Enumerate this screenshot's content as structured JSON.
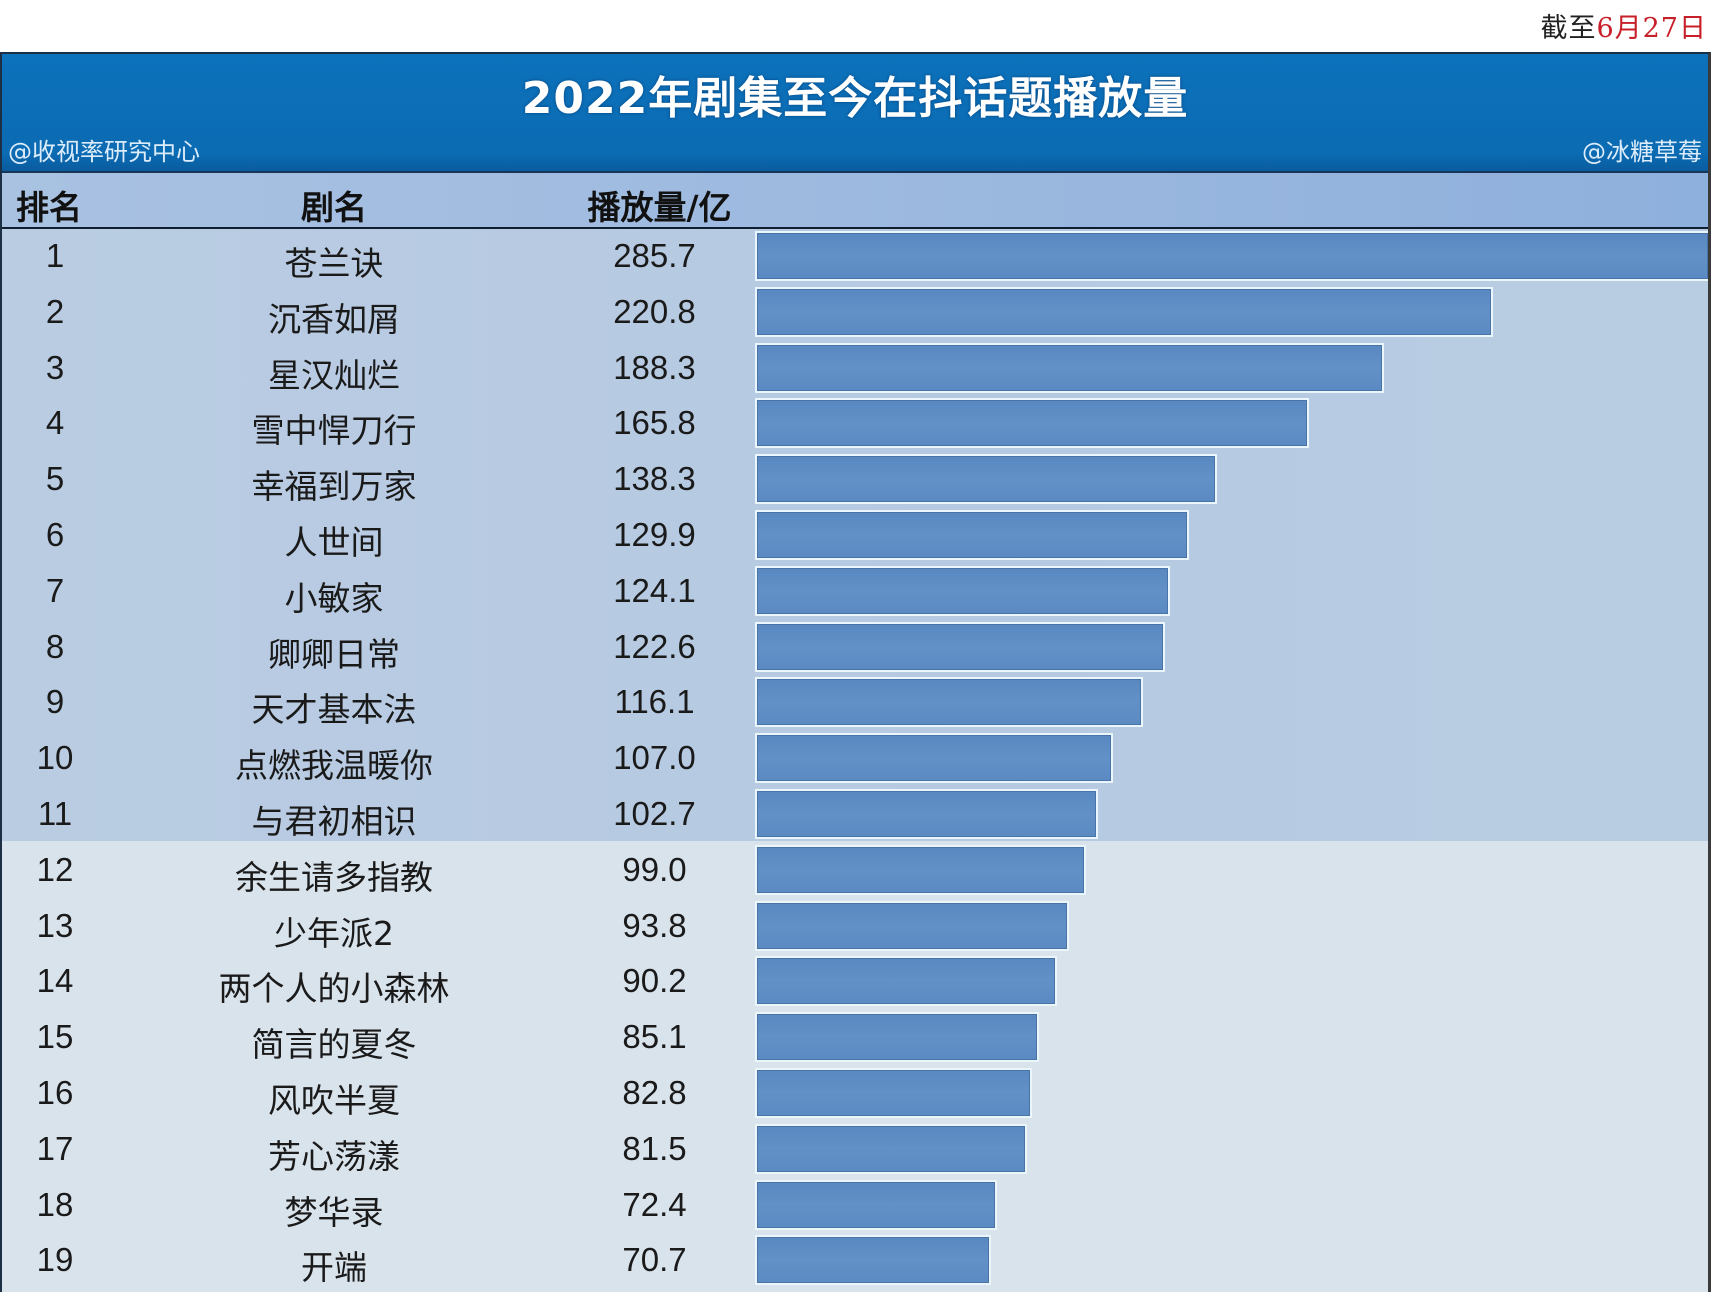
{
  "date_note": {
    "prefix": "截至",
    "date": "6月27日"
  },
  "title": "2022年剧集至今在抖话题播放量",
  "credits": {
    "left": "@收视率研究中心",
    "right": "@冰糖草莓"
  },
  "columns": {
    "rank": "排名",
    "name": "剧名",
    "value": "播放量/亿"
  },
  "colors": {
    "title_bar": "#0b6fb8",
    "header": "#9db9df",
    "band_top": "#b8cbe1",
    "band_bottom": "#d9e3ec",
    "bar": "#5e8dc4",
    "date_red": "#c8202a"
  },
  "rows": [
    {
      "rank": "1",
      "name": "苍兰诀",
      "value": "285.7"
    },
    {
      "rank": "2",
      "name": "沉香如屑",
      "value": "220.8"
    },
    {
      "rank": "3",
      "name": "星汉灿烂",
      "value": "188.3"
    },
    {
      "rank": "4",
      "name": "雪中悍刀行",
      "value": "165.8"
    },
    {
      "rank": "5",
      "name": "幸福到万家",
      "value": "138.3"
    },
    {
      "rank": "6",
      "name": "人世间",
      "value": "129.9"
    },
    {
      "rank": "7",
      "name": "小敏家",
      "value": "124.1"
    },
    {
      "rank": "8",
      "name": "卿卿日常",
      "value": "122.6"
    },
    {
      "rank": "9",
      "name": "天才基本法",
      "value": "116.1"
    },
    {
      "rank": "10",
      "name": "点燃我温暖你",
      "value": "107.0"
    },
    {
      "rank": "11",
      "name": "与君初相识",
      "value": "102.7"
    },
    {
      "rank": "12",
      "name": "余生请多指教",
      "value": "99.0"
    },
    {
      "rank": "13",
      "name": "少年派2",
      "value": "93.8"
    },
    {
      "rank": "14",
      "name": "两个人的小森林",
      "value": "90.2"
    },
    {
      "rank": "15",
      "name": "简言的夏冬",
      "value": "85.1"
    },
    {
      "rank": "16",
      "name": "风吹半夏",
      "value": "82.8"
    },
    {
      "rank": "17",
      "name": "芳心荡漾",
      "value": "81.5"
    },
    {
      "rank": "18",
      "name": "梦华录",
      "value": "72.4"
    },
    {
      "rank": "19",
      "name": "开端",
      "value": "70.7"
    }
  ],
  "chart_data": {
    "type": "bar",
    "orientation": "horizontal",
    "title": "2022年剧集至今在抖话题播放量",
    "subtitle": "截至6月27日",
    "xlabel": "播放量/亿",
    "ylabel": "剧名",
    "grid": false,
    "legend": null,
    "xlim": [
      0,
      285.7
    ],
    "categories": [
      "苍兰诀",
      "沉香如屑",
      "星汉灿烂",
      "雪中悍刀行",
      "幸福到万家",
      "人世间",
      "小敏家",
      "卿卿日常",
      "天才基本法",
      "点燃我温暖你",
      "与君初相识",
      "余生请多指教",
      "少年派2",
      "两个人的小森林",
      "简言的夏冬",
      "风吹半夏",
      "芳心荡漾",
      "梦华录",
      "开端"
    ],
    "values": [
      285.7,
      220.8,
      188.3,
      165.8,
      138.3,
      129.9,
      124.1,
      122.6,
      116.1,
      107.0,
      102.7,
      99.0,
      93.8,
      90.2,
      85.1,
      82.8,
      81.5,
      72.4,
      70.7
    ],
    "annotations": [
      "@收视率研究中心",
      "@冰糖草莓"
    ]
  }
}
